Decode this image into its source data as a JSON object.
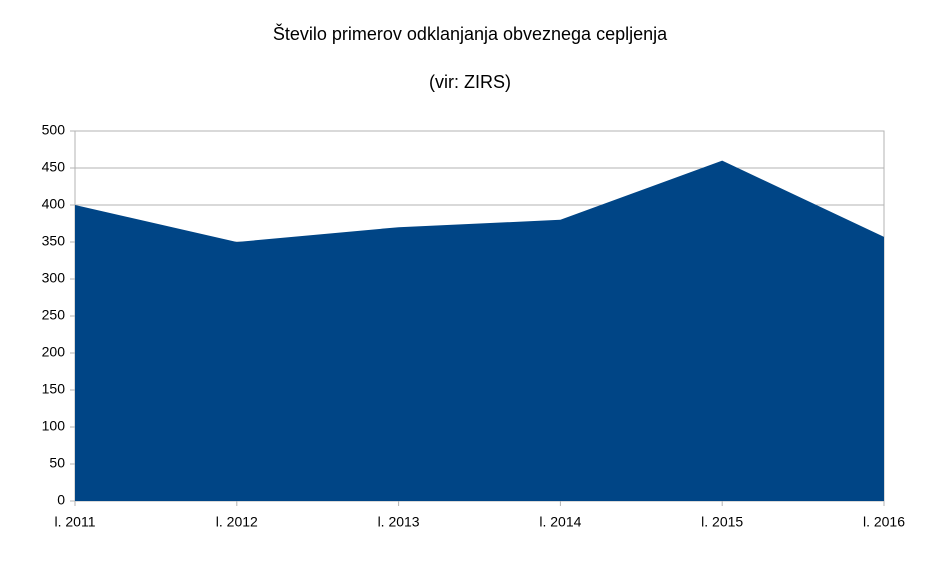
{
  "chart_data": {
    "type": "area",
    "title": "Število primerov odklanjanja obveznega cepljenja",
    "subtitle": "(vir: ZIRS)",
    "categories": [
      "l. 2011",
      "l. 2012",
      "l. 2013",
      "l. 2014",
      "l. 2015",
      "l. 2016"
    ],
    "values": [
      400,
      350,
      370,
      380,
      460,
      357
    ],
    "color": "#004586",
    "ylim": [
      0,
      500
    ],
    "yticks": [
      0,
      50,
      100,
      150,
      200,
      250,
      300,
      350,
      400,
      450,
      500
    ],
    "grid": true
  }
}
